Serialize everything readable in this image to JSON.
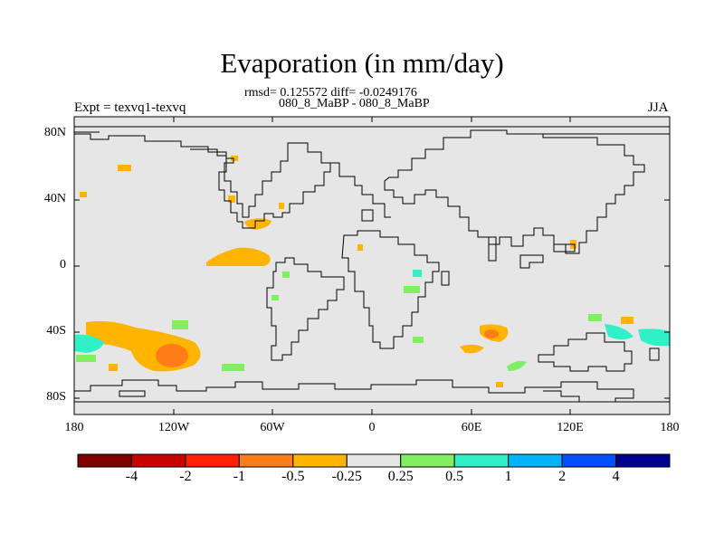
{
  "title": "Evaporation (in mm/day)",
  "stats": "rmsd= 0.125572 diff= -0.0249176",
  "runs": "080_8_MaBP - 080_8_MaBP",
  "expt": "Expt = texvq1-texvq",
  "season": "JJA",
  "lat_labels": [
    "80N",
    "40N",
    "0",
    "40S",
    "80S"
  ],
  "lon_labels": [
    "180",
    "120W",
    "60W",
    "0",
    "60E",
    "120E",
    "180"
  ],
  "map_extent": {
    "lon": [
      -180,
      180
    ],
    "lat": [
      -90,
      90
    ]
  },
  "background_color": "#e6e6e6",
  "colorbar": {
    "colors": [
      "#800000",
      "#c80000",
      "#ff2000",
      "#ff7d16",
      "#ffb400",
      "#e6e6e6",
      "#80f060",
      "#30f0c8",
      "#00b4ff",
      "#0050ff",
      "#000090"
    ],
    "labels": [
      "-4",
      "-2",
      "-1",
      "-0.5",
      "-0.25",
      "0.25",
      "0.5",
      "1",
      "2",
      "4"
    ]
  }
}
